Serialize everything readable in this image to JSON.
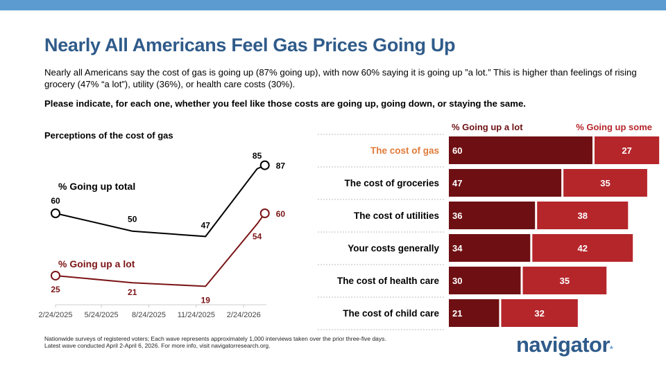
{
  "title": "Nearly All Americans Feel Gas Prices Going Up",
  "subtitle": "Nearly all Americans say the cost of gas is going up (87% going up), with now 60% saying it is going up ”a lot.” This is higher than feelings of rising grocery (47% “a lot”), utility (36%), or health care costs (30%).",
  "question": "Please indicate, for each one, whether you feel like those costs are going up, going down, or staying the same.",
  "footnote": [
    "Nationwide surveys of registered voters; Each wave represents approximately 1,000 interviews taken over the prior three-five days.",
    "Latest wave conducted April 2-April 6, 2026. For more info, visit navigatorresearch.org."
  ],
  "logo": "navigator",
  "colors": {
    "title": "#2f5b8a",
    "total": "#000000",
    "a_lot": "#7b1416",
    "bar_a_lot": "#6e1013",
    "bar_some": "#b5262b",
    "highlight_label": "#e07b39",
    "topbar": "#5b9bd0"
  },
  "chart_data": [
    {
      "type": "line",
      "title": "Perceptions of the cost of gas",
      "x_ticks": [
        "2/24/2025",
        "5/24/2025",
        "8/24/2025",
        "11/24/2025",
        "2/24/2026"
      ],
      "x": [
        "2025-02-24",
        "2025-07-23",
        "2025-12-12",
        "2026-03-22",
        "2026-04-06"
      ],
      "ylim": [
        8,
        95
      ],
      "grid": false,
      "series": [
        {
          "name": "% Going up total",
          "values": [
            60,
            50,
            47,
            85,
            87
          ],
          "labels": [
            "60",
            "50",
            "47",
            "85",
            "87"
          ]
        },
        {
          "name": "% Going up a lot",
          "values": [
            25,
            21,
            19,
            54,
            60
          ],
          "labels": [
            "25",
            "21",
            "19",
            "54",
            "60"
          ]
        }
      ]
    },
    {
      "type": "bar",
      "stacked": true,
      "orientation": "horizontal",
      "categories": [
        "The cost of gas",
        "The cost of groceries",
        "The cost of utilities",
        "Your costs generally",
        "The cost of health care",
        "The cost of child care"
      ],
      "series": [
        {
          "name": "% Going up a lot",
          "values": [
            60,
            47,
            36,
            34,
            30,
            21
          ]
        },
        {
          "name": "% Going up some",
          "values": [
            27,
            35,
            38,
            42,
            35,
            32
          ]
        }
      ],
      "xlim": [
        0,
        88
      ]
    }
  ]
}
